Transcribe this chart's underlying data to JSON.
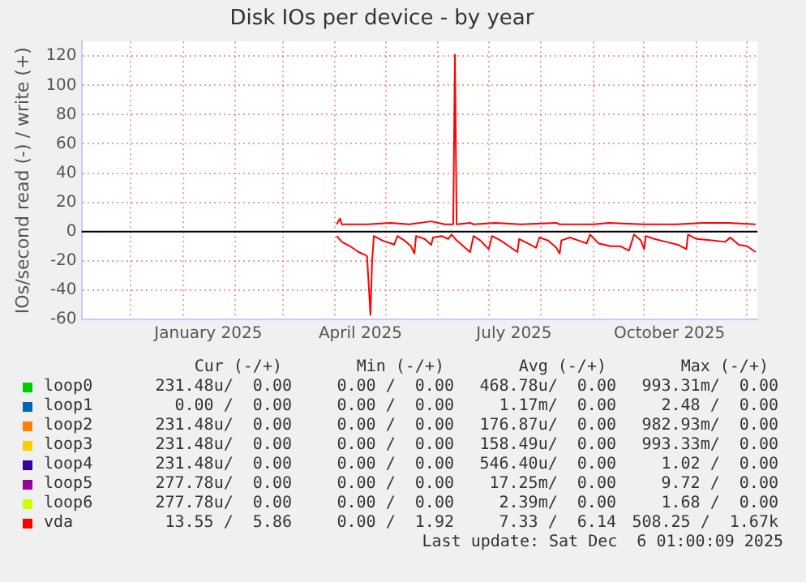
{
  "chart_data": {
    "type": "line",
    "title": "Disk IOs per device - by year",
    "ylabel": "IOs/second read (-) / write (+)",
    "xlim": [
      "2024-11-02",
      "2025-12-07"
    ],
    "xticks": [
      {
        "value": "2024-12-01",
        "label": null
      },
      {
        "value": "2025-01-01",
        "label": null
      },
      {
        "value": "2025-01-16",
        "label": "January 2025"
      },
      {
        "value": "2025-02-01",
        "label": null
      },
      {
        "value": "2025-03-01",
        "label": null
      },
      {
        "value": "2025-04-01",
        "label": null
      },
      {
        "value": "2025-04-16",
        "label": "April 2025"
      },
      {
        "value": "2025-05-01",
        "label": null
      },
      {
        "value": "2025-06-01",
        "label": null
      },
      {
        "value": "2025-07-01",
        "label": null
      },
      {
        "value": "2025-07-16",
        "label": "July 2025"
      },
      {
        "value": "2025-08-01",
        "label": null
      },
      {
        "value": "2025-09-01",
        "label": null
      },
      {
        "value": "2025-10-01",
        "label": null
      },
      {
        "value": "2025-10-16",
        "label": "October 2025"
      },
      {
        "value": "2025-11-01",
        "label": null
      },
      {
        "value": "2025-12-01",
        "label": null
      }
    ],
    "ylim": [
      -60,
      130
    ],
    "yticks": [
      -60,
      -40,
      -20,
      0,
      20,
      40,
      60,
      80,
      100,
      120
    ],
    "grid": true,
    "legend": "bottom",
    "ref_lines": [
      {
        "axis": "y",
        "value": 0,
        "color": "#000000"
      }
    ],
    "series": [
      {
        "name": "loop0",
        "color": "#00cc00"
      },
      {
        "name": "loop1",
        "color": "#0066b3"
      },
      {
        "name": "loop2",
        "color": "#ff8000"
      },
      {
        "name": "loop3",
        "color": "#ffcc00"
      },
      {
        "name": "loop4",
        "color": "#330099"
      },
      {
        "name": "loop5",
        "color": "#990099"
      },
      {
        "name": "loop6",
        "color": "#ccff00"
      },
      {
        "name": "vda",
        "color": "#ff0000",
        "x": [
          "2025-04-02",
          "2025-04-04",
          "2025-04-05",
          "2025-04-20",
          "2025-05-04",
          "2025-05-15",
          "2025-05-28",
          "2025-06-05",
          "2025-06-10",
          "2025-06-11",
          "2025-06-12",
          "2025-06-20",
          "2025-06-22",
          "2025-07-05",
          "2025-07-20",
          "2025-08-10",
          "2025-08-12",
          "2025-09-01",
          "2025-09-10",
          "2025-10-01",
          "2025-10-20",
          "2025-11-05",
          "2025-11-20",
          "2025-12-06"
        ],
        "values": [
          5,
          9,
          5,
          5,
          6,
          5,
          7,
          5,
          5,
          121,
          5,
          6,
          5,
          6,
          5,
          6,
          5,
          5,
          6,
          5,
          5,
          6,
          6,
          5
        ]
      },
      {
        "color": "#ff0000",
        "x": [
          "2025-04-02",
          "2025-04-05",
          "2025-04-10",
          "2025-04-15",
          "2025-04-19",
          "2025-04-20",
          "2025-04-22",
          "2025-04-23",
          "2025-04-24",
          "2025-04-29",
          "2025-05-04",
          "2025-05-06",
          "2025-05-08",
          "2025-05-12",
          "2025-05-16",
          "2025-05-18",
          "2025-05-19",
          "2025-05-24",
          "2025-05-28",
          "2025-05-29",
          "2025-06-03",
          "2025-06-07",
          "2025-06-09",
          "2025-06-12",
          "2025-06-15",
          "2025-06-20",
          "2025-06-22",
          "2025-06-26",
          "2025-07-01",
          "2025-07-03",
          "2025-07-08",
          "2025-07-13",
          "2025-07-18",
          "2025-07-19",
          "2025-07-24",
          "2025-07-29",
          "2025-07-31",
          "2025-08-05",
          "2025-08-10",
          "2025-08-12",
          "2025-08-13",
          "2025-08-18",
          "2025-08-23",
          "2025-08-28",
          "2025-08-30",
          "2025-09-04",
          "2025-09-11",
          "2025-09-17",
          "2025-09-22",
          "2025-09-25",
          "2025-09-29",
          "2025-10-01",
          "2025-10-02",
          "2025-10-07",
          "2025-10-14",
          "2025-10-21",
          "2025-10-26",
          "2025-10-27",
          "2025-11-01",
          "2025-11-10",
          "2025-11-18",
          "2025-11-21",
          "2025-11-26",
          "2025-12-01",
          "2025-12-06"
        ],
        "values": [
          -3,
          -7,
          -10,
          -14,
          -16,
          -17,
          -57,
          -20,
          -3,
          -6,
          -8,
          -9,
          -3,
          -6,
          -10,
          -15,
          -3,
          -5,
          -9,
          -4,
          -3,
          -5,
          -2,
          -6,
          -9,
          -14,
          -3,
          -6,
          -12,
          -3,
          -6,
          -10,
          -14,
          -5,
          -8,
          -11,
          -4,
          -6,
          -11,
          -15,
          -6,
          -4,
          -6,
          -8,
          -2,
          -8,
          -10,
          -10,
          -13,
          -2,
          -6,
          -12,
          -3,
          -5,
          -7,
          -9,
          -12,
          -2,
          -5,
          -6,
          -7,
          -4,
          -9,
          -10,
          -14
        ]
      }
    ],
    "annotations": [
      "Cur (-/+)",
      "Min (-/+)",
      "Avg (-/+)",
      "Max (-/+)",
      "231.48u/  0.00",
      "0.00 /  0.00",
      "468.78u/  0.00",
      "993.31m/  0.00",
      "0.00 /  0.00",
      "0.00 /  0.00",
      "1.17m/  0.00",
      "2.48 /  0.00",
      "231.48u/  0.00",
      "0.00 /  0.00",
      "176.87u/  0.00",
      "982.93m/  0.00",
      "231.48u/  0.00",
      "0.00 /  0.00",
      "158.49u/  0.00",
      "993.33m/  0.00",
      "231.48u/  0.00",
      "0.00 /  0.00",
      "546.40u/  0.00",
      "1.02 /  0.00",
      "277.78u/  0.00",
      "0.00 /  0.00",
      "17.25m/  0.00",
      "9.72 /  0.00",
      "277.78u/  0.00",
      "0.00 /  0.00",
      "2.39m/  0.00",
      "1.68 /  0.00",
      "13.55 /  5.86",
      "0.00 /  1.92",
      "7.33 /  6.14",
      "508.25 /  1.67k",
      "Last update: Sat Dec  6 01:00:09 2025"
    ]
  }
}
